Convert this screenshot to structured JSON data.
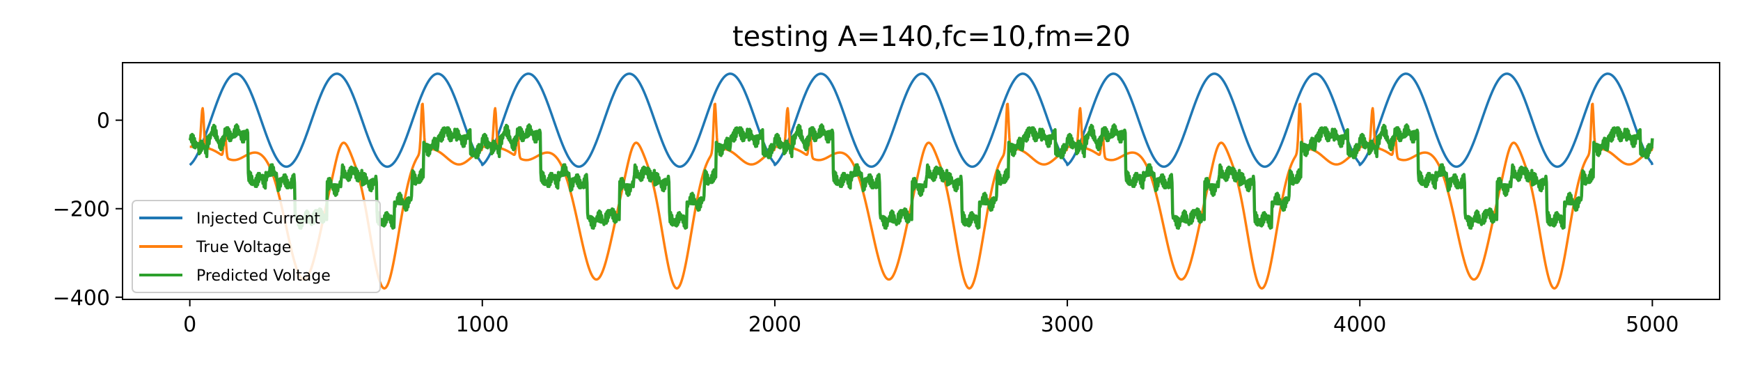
{
  "chart_data": {
    "type": "line",
    "title": "testing A=140,fc=10,fm=20",
    "xlabel": "",
    "ylabel": "",
    "xlim": [
      -230,
      5230
    ],
    "ylim": [
      -405,
      130
    ],
    "xticks": [
      0,
      1000,
      2000,
      3000,
      4000,
      5000
    ],
    "xtick_labels": [
      "0",
      "1000",
      "2000",
      "3000",
      "4000",
      "5000"
    ],
    "yticks": [
      0,
      -200,
      -400
    ],
    "ytick_labels": [
      "0",
      "−200",
      "−400"
    ],
    "grid": false,
    "legend_position": "lower-left",
    "x_range": [
      0,
      5000
    ],
    "series": [
      {
        "name": "Injected Current",
        "color": "#1f77b4",
        "description_values": {
          "amplitude_peak": 105,
          "amplitude_trough": -105,
          "period_samples": 350
        }
      },
      {
        "name": "True Voltage",
        "color": "#ff7f0e",
        "description_values": {
          "plateau": -60,
          "trough_min": -380,
          "spike_max": 50
        }
      },
      {
        "name": "Predicted Voltage",
        "color": "#2ca02c",
        "description_values": {
          "high_level": -30,
          "low_level": -135,
          "trough_level": -225
        }
      }
    ]
  }
}
